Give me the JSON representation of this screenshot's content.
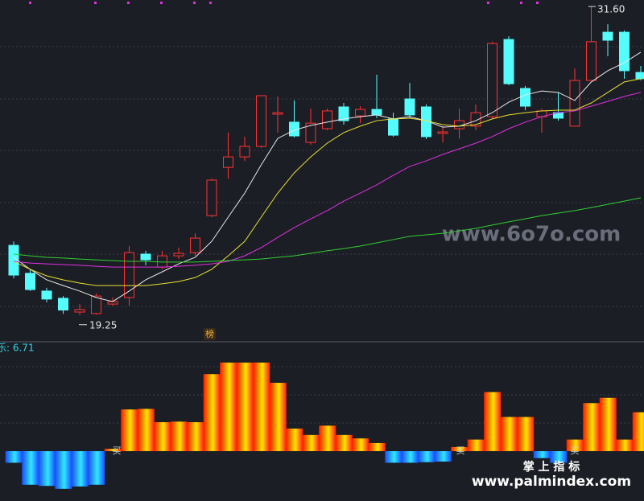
{
  "chart_data": [
    {
      "type": "candlestick",
      "ylim": [
        18.18,
        31.86
      ],
      "open": [
        22.04,
        20.92,
        20.21,
        19.92,
        19.37,
        19.31,
        19.69,
        19.95,
        21.69,
        21.17,
        21.62,
        21.75,
        23.23,
        25.16,
        25.58,
        26.0,
        27.29,
        26.97,
        26.16,
        26.71,
        27.58,
        27.22,
        27.48,
        27.1,
        27.9,
        27.58,
        26.52,
        26.71,
        26.81,
        27.19,
        30.28,
        28.32,
        27.19,
        27.35,
        26.81,
        28.64,
        30.57,
        30.57,
        28.96
      ],
      "high": [
        22.2,
        21.08,
        20.34,
        20.01,
        19.69,
        20.11,
        19.95,
        22.01,
        21.82,
        21.82,
        21.95,
        22.52,
        24.71,
        26.55,
        26.39,
        28.03,
        28.0,
        27.84,
        27.51,
        27.51,
        27.74,
        27.61,
        28.87,
        27.35,
        28.54,
        27.68,
        26.81,
        27.51,
        27.68,
        30.19,
        30.41,
        28.42,
        27.51,
        28.16,
        29.12,
        31.6,
        30.89,
        30.64,
        29.22
      ],
      "low": [
        20.72,
        20.21,
        19.76,
        19.3,
        19.25,
        19.27,
        19.63,
        19.63,
        21.24,
        21.08,
        21.49,
        21.62,
        23.17,
        24.71,
        25.42,
        25.94,
        26.55,
        26.36,
        26.07,
        26.65,
        26.87,
        26.93,
        27.13,
        26.39,
        27.13,
        26.29,
        26.16,
        26.32,
        26.65,
        27.1,
        28.45,
        27.45,
        26.55,
        27.03,
        26.81,
        28.64,
        29.61,
        28.71,
        28.64
      ],
      "close": [
        20.85,
        20.27,
        19.89,
        19.45,
        19.47,
        20.01,
        19.79,
        21.75,
        21.46,
        21.62,
        21.72,
        22.33,
        24.65,
        25.58,
        26.0,
        28.03,
        27.35,
        26.42,
        26.93,
        27.42,
        27.03,
        27.48,
        27.26,
        26.45,
        27.26,
        26.39,
        26.58,
        27.03,
        27.35,
        30.12,
        28.51,
        27.61,
        27.42,
        27.13,
        28.64,
        30.19,
        30.25,
        29.03,
        28.71
      ],
      "up_color": "#ff3232",
      "down_color": "#54fcfc",
      "lines": [
        {
          "color": "#e8e8e8",
          "values": [
            21.56,
            21.08,
            20.66,
            20.43,
            20.21,
            19.95,
            19.79,
            20.21,
            20.66,
            20.98,
            21.3,
            21.56,
            22.2,
            23.17,
            24.13,
            25.26,
            26.32,
            26.65,
            26.84,
            26.97,
            27.1,
            27.19,
            27.26,
            27.1,
            27.19,
            27.03,
            26.77,
            26.81,
            27.03,
            27.35,
            27.77,
            28.06,
            28.22,
            28.16,
            27.84,
            28.58,
            29.03,
            29.35,
            29.77
          ]
        },
        {
          "color": "#e8e030",
          "values": [
            21.4,
            21.08,
            20.82,
            20.66,
            20.53,
            20.43,
            20.43,
            20.43,
            20.43,
            20.5,
            20.59,
            20.75,
            21.08,
            21.62,
            22.2,
            23.17,
            24.13,
            24.94,
            25.58,
            26.13,
            26.55,
            26.81,
            27.03,
            27.1,
            27.13,
            27.03,
            26.87,
            26.81,
            26.87,
            27.1,
            27.26,
            27.35,
            27.42,
            27.45,
            27.45,
            27.74,
            28.16,
            28.58,
            28.71
          ]
        },
        {
          "color": "#e030e0",
          "values": [
            21.4,
            21.33,
            21.3,
            21.27,
            21.24,
            21.2,
            21.17,
            21.17,
            21.17,
            21.17,
            21.2,
            21.24,
            21.3,
            21.4,
            21.62,
            21.95,
            22.36,
            22.75,
            23.1,
            23.43,
            23.81,
            24.13,
            24.46,
            24.84,
            25.2,
            25.42,
            25.68,
            25.9,
            26.13,
            26.39,
            26.71,
            26.97,
            27.19,
            27.35,
            27.42,
            27.61,
            27.8,
            28.0,
            28.16
          ]
        },
        {
          "color": "#30d030",
          "values": [
            21.69,
            21.62,
            21.56,
            21.53,
            21.49,
            21.46,
            21.43,
            21.4,
            21.4,
            21.37,
            21.37,
            21.37,
            21.4,
            21.43,
            21.46,
            21.49,
            21.56,
            21.62,
            21.72,
            21.82,
            21.91,
            22.01,
            22.14,
            22.27,
            22.4,
            22.46,
            22.52,
            22.62,
            22.72,
            22.85,
            22.98,
            23.1,
            23.23,
            23.33,
            23.43,
            23.55,
            23.68,
            23.81,
            23.94
          ]
        }
      ],
      "annotations": [
        {
          "value": 31.6,
          "label": "31.60"
        },
        {
          "value": 19.25,
          "label": "19.25"
        }
      ],
      "tag": "榜",
      "watermark": "www.6o7o.com"
    },
    {
      "type": "bar",
      "ylim": [
        -8.61,
        17.5
      ],
      "label": "乐: 6.71",
      "values": [
        -2.0,
        -5.8,
        -6.0,
        -6.5,
        -6.1,
        -5.8,
        0.4,
        7.2,
        7.3,
        5.0,
        5.1,
        5.0,
        13.3,
        15.3,
        15.3,
        15.3,
        11.8,
        3.9,
        2.8,
        4.4,
        2.8,
        2.2,
        1.4,
        -2.0,
        -2.0,
        -1.9,
        -1.8,
        0.7,
        2.0,
        10.2,
        5.9,
        5.9,
        -1.2,
        -2.0,
        2.0,
        8.3,
        9.2,
        2.0,
        6.71
      ],
      "signals": [
        "买",
        "买",
        "买"
      ],
      "brand": "掌 上 指 标",
      "site": "www.palmindex.com"
    }
  ]
}
